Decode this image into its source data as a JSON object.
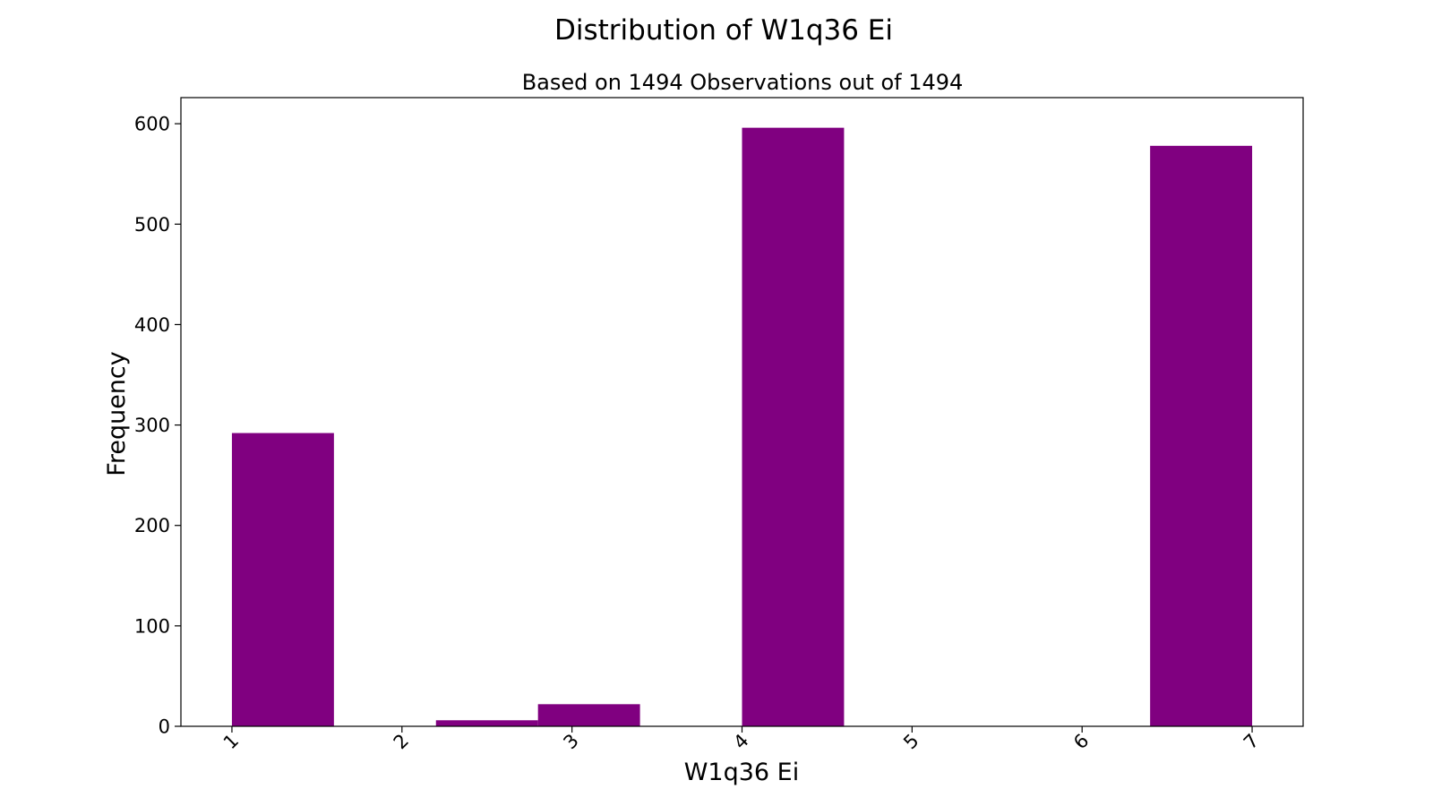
{
  "chart_data": {
    "type": "bar",
    "title": "Distribution of W1q36 Ei",
    "subtitle": "Based on 1494 Observations out of 1494",
    "xlabel": "W1q36 Ei",
    "ylabel": "Frequency",
    "bar_color": "#800080",
    "categories": [
      "1",
      "2",
      "3",
      "4",
      "5",
      "6",
      "7"
    ],
    "x_ticks": [
      1,
      2,
      3,
      4,
      5,
      6,
      7
    ],
    "y_ticks": [
      0,
      100,
      200,
      300,
      400,
      500,
      600
    ],
    "xlim": [
      0.7,
      7.3
    ],
    "ylim": [
      0,
      626
    ],
    "bins": [
      {
        "x0": 1.0,
        "x1": 1.6,
        "value": 292
      },
      {
        "x0": 1.6,
        "x1": 2.2,
        "value": 0
      },
      {
        "x0": 2.2,
        "x1": 2.8,
        "value": 6
      },
      {
        "x0": 2.8,
        "x1": 3.4,
        "value": 22
      },
      {
        "x0": 3.4,
        "x1": 4.0,
        "value": 0
      },
      {
        "x0": 4.0,
        "x1": 4.6,
        "value": 596
      },
      {
        "x0": 4.6,
        "x1": 5.2,
        "value": 0
      },
      {
        "x0": 5.2,
        "x1": 5.8,
        "value": 0
      },
      {
        "x0": 5.8,
        "x1": 6.4,
        "value": 0
      },
      {
        "x0": 6.4,
        "x1": 7.0,
        "value": 578
      }
    ],
    "grid": false,
    "legend": "none"
  }
}
